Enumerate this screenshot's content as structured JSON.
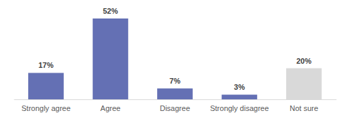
{
  "chart_data": {
    "type": "bar",
    "categories": [
      "Strongly agree",
      "Agree",
      "Disagree",
      "Strongly disagree",
      "Not sure"
    ],
    "values": [
      17,
      52,
      7,
      3,
      20
    ],
    "value_labels": [
      "17%",
      "52%",
      "7%",
      "3%",
      "20%"
    ],
    "colors": [
      "#6470b4",
      "#6470b4",
      "#6470b4",
      "#6470b4",
      "#d9d9d9"
    ],
    "data_labels": true,
    "tick_labels": "x"
  }
}
